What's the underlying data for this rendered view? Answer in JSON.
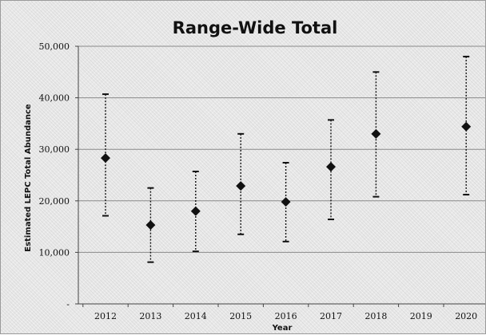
{
  "chart_data": {
    "type": "scatter",
    "title": "Range-Wide Total",
    "xlabel": "Year",
    "ylabel": "Estimated LEPC Total Abundance",
    "categories": [
      "2012",
      "2013",
      "2014",
      "2015",
      "2016",
      "2017",
      "2018",
      "2019",
      "2020"
    ],
    "ylim": [
      0,
      50000
    ],
    "y_ticks": [
      {
        "value": 0,
        "label": "-"
      },
      {
        "value": 10000,
        "label": "10,000"
      },
      {
        "value": 20000,
        "label": "20,000"
      },
      {
        "value": 30000,
        "label": "30,000"
      },
      {
        "value": 40000,
        "label": "40,000"
      },
      {
        "value": 50000,
        "label": "50,000"
      }
    ],
    "grid": true,
    "legend": "none",
    "series": [
      {
        "x": [
          "2012",
          "2013",
          "2014",
          "2015",
          "2016",
          "2017",
          "2018",
          "2020"
        ],
        "values": [
          28300,
          15300,
          18000,
          22900,
          19800,
          26600,
          33000,
          34400
        ],
        "lower": [
          17100,
          8100,
          10200,
          13500,
          12100,
          16400,
          20800,
          21200
        ],
        "upper": [
          40700,
          22500,
          25700,
          33000,
          27400,
          35700,
          45000,
          48000
        ]
      }
    ],
    "colors": {
      "marker": "#111111",
      "error_bar": "#111111",
      "gridline": "#8a8a8a",
      "axis": "#444444"
    }
  }
}
